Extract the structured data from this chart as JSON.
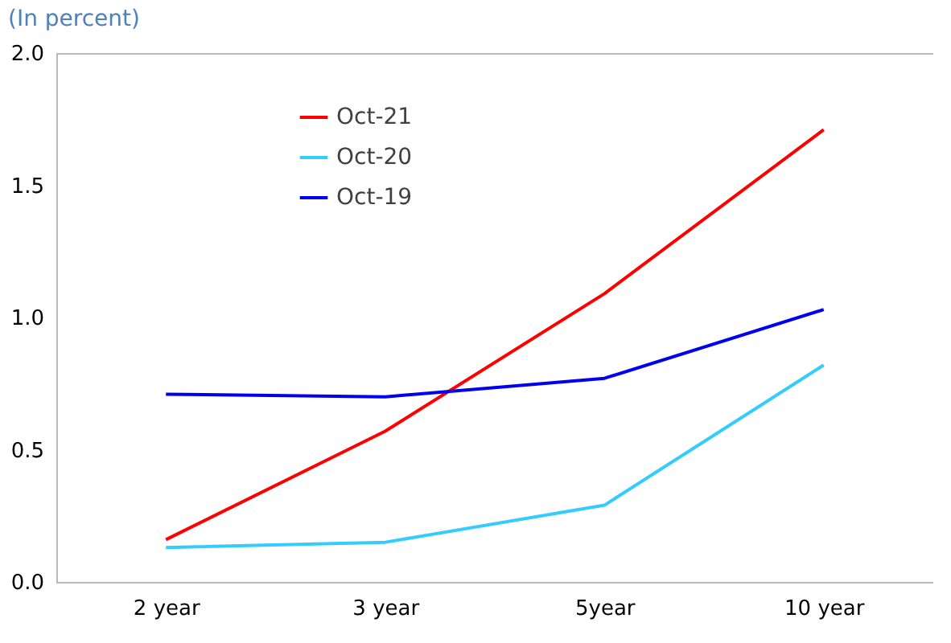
{
  "chart_data": {
    "type": "line",
    "subtitle": "(In percent)",
    "categories": [
      "2 year",
      "3 year",
      "5year",
      "10 year"
    ],
    "series": [
      {
        "name": "Oct-21",
        "color": "#ff0000",
        "values": [
          0.16,
          0.57,
          1.09,
          1.71
        ]
      },
      {
        "name": "Oct-20",
        "color": "#33ccff",
        "values": [
          0.13,
          0.15,
          0.29,
          0.82
        ]
      },
      {
        "name": "Oct-19",
        "color": "#0000ee",
        "values": [
          0.71,
          0.7,
          0.77,
          1.03
        ]
      }
    ],
    "ylim": [
      0,
      2
    ],
    "yticks": [
      {
        "value": 0,
        "label": "0.0"
      },
      {
        "value": 0.5,
        "label": "0.5"
      },
      {
        "value": 1,
        "label": "1.0"
      },
      {
        "value": 1.5,
        "label": "1.5"
      },
      {
        "value": 2,
        "label": "2.0"
      }
    ],
    "grid": false,
    "legend": "top left",
    "marker": "none",
    "line_style": "solid"
  }
}
